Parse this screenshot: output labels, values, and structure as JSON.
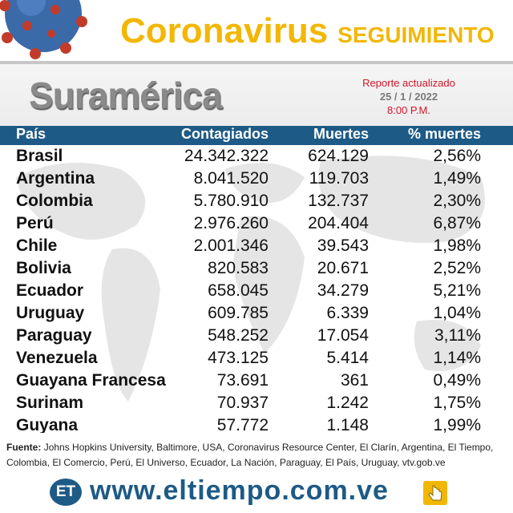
{
  "brand": {
    "word1": "Coronavirus",
    "word2": "SEGUIMIENTO",
    "color": "#f2b705"
  },
  "region": "Suramérica",
  "report": {
    "label": "Reporte actualizado",
    "date": "25 / 1 / 2022",
    "time": "8:00 P.M."
  },
  "table": {
    "headers": [
      "País",
      "Contagiados",
      "Muertes",
      "% muertes"
    ],
    "rows": [
      {
        "pais": "Brasil",
        "contagiados": "24.342.322",
        "muertes": "624.129",
        "pct": "2,56%"
      },
      {
        "pais": "Argentina",
        "contagiados": "8.041.520",
        "muertes": "119.703",
        "pct": "1,49%"
      },
      {
        "pais": "Colombia",
        "contagiados": "5.780.910",
        "muertes": "132.737",
        "pct": "2,30%"
      },
      {
        "pais": "Perú",
        "contagiados": "2.976.260",
        "muertes": "204.404",
        "pct": "6,87%"
      },
      {
        "pais": "Chile",
        "contagiados": "2.001.346",
        "muertes": "39.543",
        "pct": "1,98%"
      },
      {
        "pais": "Bolivia",
        "contagiados": "820.583",
        "muertes": "20.671",
        "pct": "2,52%"
      },
      {
        "pais": "Ecuador",
        "contagiados": "658.045",
        "muertes": "34.279",
        "pct": "5,21%"
      },
      {
        "pais": "Uruguay",
        "contagiados": "609.785",
        "muertes": "6.339",
        "pct": "1,04%"
      },
      {
        "pais": "Paraguay",
        "contagiados": "548.252",
        "muertes": "17.054",
        "pct": "3,11%"
      },
      {
        "pais": "Venezuela",
        "contagiados": "473.125",
        "muertes": "5.414",
        "pct": "1,14%"
      },
      {
        "pais": "Guayana Francesa",
        "contagiados": "73.691",
        "muertes": "361",
        "pct": "0,49%"
      },
      {
        "pais": "Surinam",
        "contagiados": "70.937",
        "muertes": "1.242",
        "pct": "1,75%"
      },
      {
        "pais": "Guyana",
        "contagiados": "57.772",
        "muertes": "1.148",
        "pct": "1,99%"
      }
    ]
  },
  "footer": {
    "sources_label": "Fuente:",
    "sources_text": "Johns Hopkins University, Baltimore, USA, Coronavirus Resource Center,  El Clarín, Argentina, El Tiempo, Colombia, El Comercio, Perú, El Universo, Ecuador, La Nación, Paraguay, El País, Uruguay, vtv.gob.ve",
    "logo": "ET",
    "website": "www.eltiempo.com.ve"
  },
  "colors": {
    "header_bg": "#1e5a86",
    "accent_red": "#d4142a",
    "brand_yellow": "#f2b705"
  }
}
